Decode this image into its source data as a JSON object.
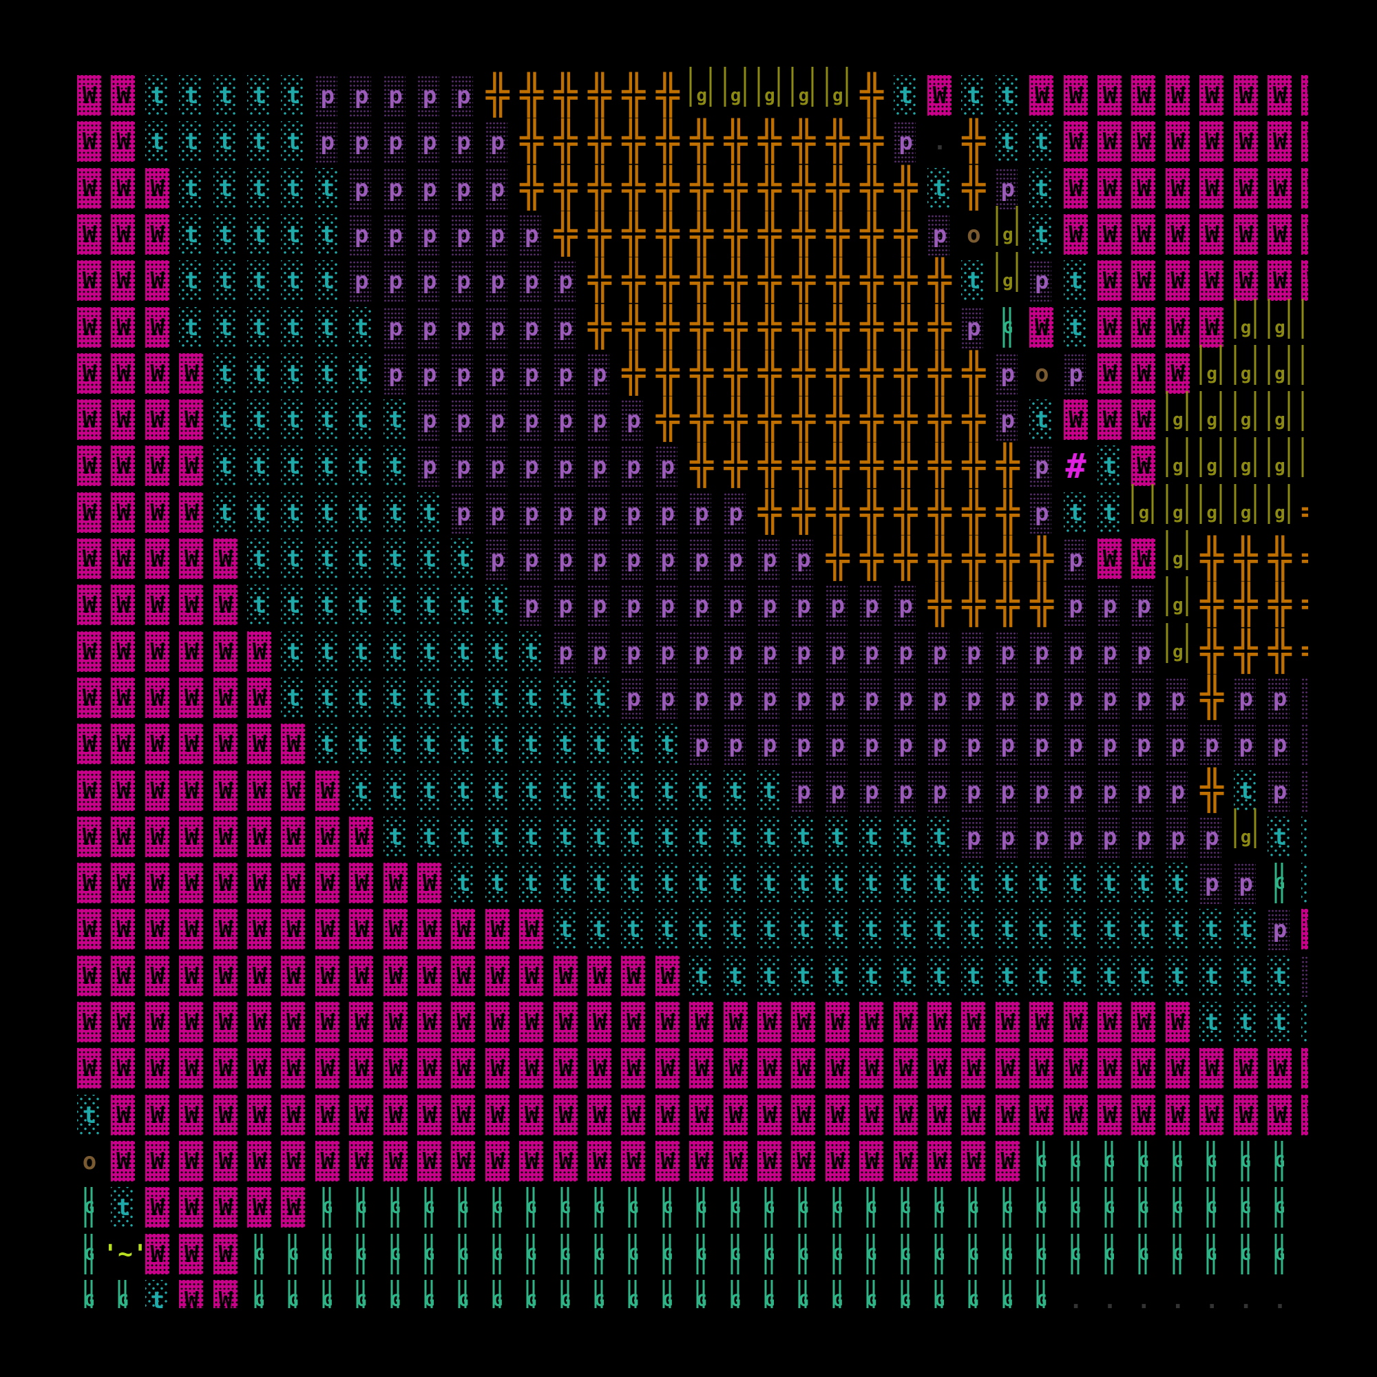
{
  "map": {
    "rows": [
      "WWtttttppppp++++++ggggg+tWttWWWWWWWWW",
      "WWtttttpppppp+++++++++++p.+ttWWWWWWWW",
      "WWWtttttppppp++++++++++++t+ptWWWWWWWW",
      "WWWtttttpppppp+++++++++++pogtWWWWWWWW",
      "WWWtttttppppppp+++++++++++tgptWWWWWWW",
      "WWWttttttpppppp+++++++++++pGWtWWWWggg",
      "WWWWtttttppppppp+++++++++++popWWWgggg",
      "WWWWttttttppppppp++++++++++ptWWWggggg",
      "WWWWttttttpppppppp++++++++++p#tWggggg",
      "WWWWtttttttppppppppp++++++++pttggggg+",
      "WWWWWtttttttpppppppppp+++++++pWWg++++",
      "WWWWWttttttttpppppppppppp++++pppg++++",
      "WWWWWWttttttttppppppppppppppppppg++++",
      "WWWWWWttttttttttppppppppppppppppp+ppp",
      "WWWWWWWtttttttttttppppppppppppppppppp",
      "WWWWWWWWtttttttttttttpppppppppppp+tpp",
      "WWWWWWWWWtttttttttttttttttppppppppgtt",
      "WWWWWWWWWWWttttttttttttttttttttttppGt",
      "WWWWWWWWWWWWWWtttttttttttttttttttttpW",
      "WWWWWWWWWWWWWWWWWWttttttttttttttttttp",
      "WWWWWWWWWWWWWWWWWWWWWWWWWWWWWWWWWtttt",
      "WWWWWWWWWWWWWWWWWWWWWWWWWWWWWWWWWWWWW",
      "tWWWWWWWWWWWWWWWWWWWWWWWWWWWWWWWWWWWW",
      "oWWWWWWWWWWWWWWWWWWWWWWWWWWWGGGGGGGG.",
      "GtWWWWWGGGGGGGGGGGGGGGGGGGGGGGGGGGGG.",
      "G~WWWGGGGGGGGGGGGGGGGGGGGGGGGGGGGGGG.",
      "GGtWWGGGGGGGGGGGGGGGGGGGGGGGG........"
    ],
    "legend": {
      "W": {
        "terrain": "crystal-wall",
        "color": "#c8008a"
      },
      "t": {
        "terrain": "lit-floor",
        "color": "#1fa9a9"
      },
      "p": {
        "terrain": "dim-floor",
        "color": "#5a2c70"
      },
      "+": {
        "terrain": "bridge-crossing",
        "glyph": "╬",
        "color": "#c07000"
      },
      "g": {
        "terrain": "tall-grass",
        "color": "#8c8a12"
      },
      "G": {
        "terrain": "green-grass",
        "color": "#2fb487"
      },
      "o": {
        "terrain": "rubble",
        "color": "#7a5a30"
      },
      "#": {
        "terrain": "hash-feature",
        "glyph": "#",
        "color": "#e020e0"
      },
      "~": {
        "terrain": "item",
        "glyph": "'~'",
        "color": "#b8e020"
      },
      ".": {
        "terrain": "empty",
        "color": "#000000"
      }
    }
  }
}
